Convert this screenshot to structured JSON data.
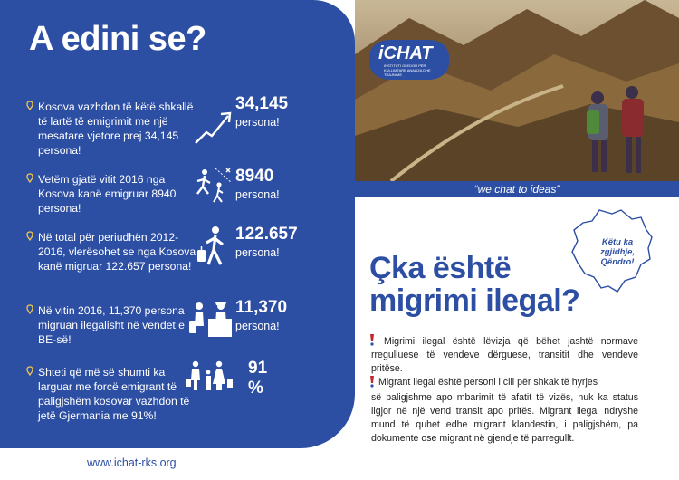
{
  "left": {
    "title": "A edini se?",
    "facts": [
      {
        "text": "Kosova vazhdon të këtë shkallë të lartë të emigrimit me një mesatare vjetore prej 34,145 persona!",
        "number": "34,145",
        "unit": "persona!",
        "icon": "trend-up-arrow-icon"
      },
      {
        "text": "Vetëm gjatë vitit 2016 nga Kosova kanë emigruar 8940 persona!",
        "number": "8940",
        "unit": "persona!",
        "icon": "running-people-icon"
      },
      {
        "text": "Në total për periudhën 2012-2016, vlerësohet se nga Kosova kanë migruar 122.657 persona!",
        "number": "122.657",
        "unit": "persona!",
        "icon": "traveler-with-suitcase-icon"
      },
      {
        "text": "Në vitin 2016, 11,370 persona migruan ilegalisht në vendet e BE-së!",
        "number": "11,370",
        "unit": "persona!",
        "icon": "border-control-icon"
      },
      {
        "text": "Shteti që më së shumti ka larguar me forcë emigrant të paligjshëm kosovar vazhdon të jetë Gjermania me 91%!",
        "number": "91",
        "unit": "%",
        "icon": "family-icon"
      }
    ],
    "url": "www.ichat-rks.org"
  },
  "right": {
    "logo": {
      "name": "iCHAT",
      "tagline": "INSTITUTI GLEDOR PËR KULLIMTARE ANALIZA DHE TRAJNIME"
    },
    "caption": "“we chat to ideas”",
    "map_label": "Këtu ka zgjidhje, Qëndro!",
    "heading_line1": "Çka është",
    "heading_line2": "migrimi ilegal?",
    "para1": "Migrimi ilegal është lëvizja që bëhet jashtë normave rregulluese të vendeve dërguese, transitit dhe vendeve pritëse.",
    "para2_lead": "Migrant ilegal është personi i cili për shkak të hyrjes",
    "para2_rest": "së paligjshme apo mbarimit të afatit të vizës, nuk ka status ligjor në një vend transit apo pritës. Migrant ilegal ndryshe mund të quhet edhe migrant klandestin, i paligjshëm, pa dokumente ose migrant në gjendje të parregullt."
  },
  "colors": {
    "brand_blue": "#2c4ea3",
    "accent_red": "#c0282d",
    "white": "#ffffff"
  }
}
